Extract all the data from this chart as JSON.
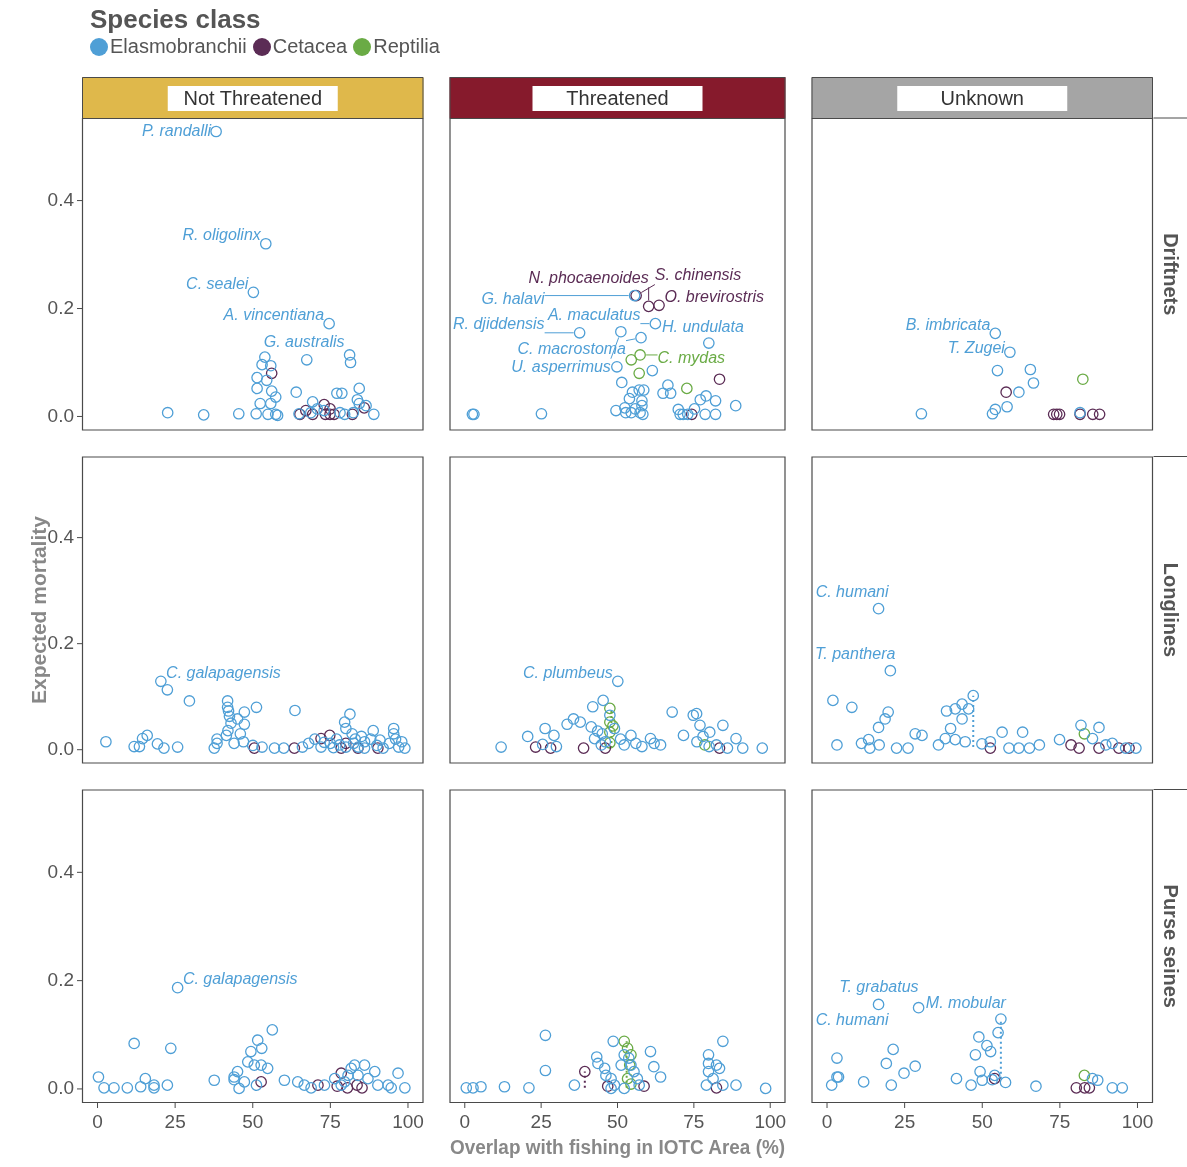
{
  "chart_data": [
    {
      "type": "scatter",
      "title": "Not Threatened",
      "marker": "circle",
      "tick_labels": "y",
      "xlim": [
        -5,
        105
      ],
      "ylim": [
        -0.026,
        0.553
      ],
      "yticks": [
        {
          "value": 0,
          "label": "0.0"
        },
        {
          "value": 0.2,
          "label": "0.2"
        },
        {
          "value": 0.4,
          "label": "0.4"
        }
      ],
      "series": [
        {
          "color": "#4f9fd6",
          "x": [
            38.2,
            54.2,
            50.2,
            74.6,
            81.2,
            81.5,
            53.9,
            53,
            55.8,
            67.4,
            51.4,
            54.5,
            51.4,
            56.1,
            57.4,
            64,
            77.1,
            78.7,
            84.3,
            83.7,
            69.3,
            52.4,
            55.8,
            22.6,
            34.2,
            45.5,
            51.1,
            54.9,
            57.4,
            58,
            64.9,
            70.8,
            78.1,
            79.6,
            82.4,
            84.3,
            86.5,
            89,
            68.7,
            73
          ],
          "values": [
            0.528,
            0.32,
            0.23,
            0.172,
            0.114,
            0.1,
            0.11,
            0.096,
            0.094,
            0.105,
            0.072,
            0.067,
            0.052,
            0.047,
            0.036,
            0.045,
            0.043,
            0.043,
            0.052,
            0.031,
            0.027,
            0.024,
            0.024,
            0.007,
            0.003,
            0.005,
            0.005,
            0.004,
            0.004,
            0.002,
            0.005,
            0.014,
            0.007,
            0.004,
            0.007,
            0.024,
            0.02,
            0.004,
            0.007,
            0.011
          ]
        },
        {
          "color": "#5b2c55",
          "x": [
            56.1,
            65.2,
            67.1,
            69.3,
            73,
            73.4,
            74.9,
            76.2,
            74.9,
            82.1,
            85.9
          ],
          "values": [
            0.08,
            0.004,
            0.011,
            0.004,
            0.022,
            0.004,
            0.004,
            0.004,
            0.014,
            0.004,
            0.016
          ]
        }
      ],
      "annotations": [
        {
          "text": "P. randalli",
          "x": 38.2,
          "y": 0.528
        },
        {
          "text": "R. oligolinx",
          "x": 54.2,
          "y": 0.32
        },
        {
          "text": "C. sealei",
          "x": 50.2,
          "y": 0.23
        },
        {
          "text": "A. vincentiana",
          "x": 74.6,
          "y": 0.172
        },
        {
          "text": "G. australis",
          "x": 81.2,
          "y": 0.114
        }
      ]
    },
    {
      "type": "scatter",
      "title": "Threatened",
      "legend_title": "Species class",
      "legend": "top left",
      "marker": "circle",
      "tick_labels": false,
      "xlim": [
        -5,
        105
      ],
      "ylim": [
        -0.026,
        0.553
      ],
      "series": [
        {
          "name": "Elasmobranchii",
          "color": "#4f9fd6",
          "x": [
            55.6,
            62.4,
            57.7,
            51.1,
            37.6,
            79.9,
            2.5,
            3,
            25.1,
            49.8,
            61.4,
            51.4,
            66.5,
            54.9,
            57.1,
            58.6,
            64.9,
            67.4,
            53.9,
            58,
            49.5,
            52.4,
            52.7,
            54.5,
            55.8,
            58,
            57.4,
            58.3,
            69.9,
            70.5,
            71.5,
            73,
            75.2,
            77.1,
            79,
            82.1,
            78.7,
            82.1,
            88.7
          ],
          "values": [
            0.224,
            0.172,
            0.146,
            0.157,
            0.155,
            0.136,
            0.004,
            0.004,
            0.005,
            0.092,
            0.085,
            0.063,
            0.058,
            0.045,
            0.049,
            0.049,
            0.043,
            0.043,
            0.033,
            0.029,
            0.011,
            0.016,
            0.007,
            0.007,
            0.014,
            0.02,
            0.007,
            0.004,
            0.013,
            0.004,
            0.004,
            0.004,
            0.014,
            0.031,
            0.038,
            0.029,
            0.004,
            0.004,
            0.02
          ]
        },
        {
          "name": "Cetacea",
          "color": "#5b2c55",
          "x": [
            56.1,
            60.2,
            63.6,
            83.4,
            74.3
          ],
          "values": [
            0.224,
            0.204,
            0.206,
            0.069,
            0.004
          ]
        },
        {
          "name": "Reptilia",
          "color": "#6aab45",
          "x": [
            54.5,
            57.4,
            57.1,
            72.7
          ],
          "values": [
            0.105,
            0.114,
            0.08,
            0.052
          ]
        }
      ],
      "annotations": [
        {
          "text": "S. chinensis",
          "x": 56.1,
          "y": 0.224
        },
        {
          "text": "G. halavi",
          "x": 55.6,
          "y": 0.224
        },
        {
          "text": "N. phocaenoides",
          "x": 60.2,
          "y": 0.204
        },
        {
          "text": "O. brevirostris",
          "x": 63.6,
          "y": 0.206
        },
        {
          "text": "A. maculatus",
          "x": 62.4,
          "y": 0.172
        },
        {
          "text": "C. macrostoma",
          "x": 57.7,
          "y": 0.146
        },
        {
          "text": "U. asperrimus",
          "x": 51.1,
          "y": 0.157
        },
        {
          "text": "R. djiddensis",
          "x": 37.6,
          "y": 0.155
        },
        {
          "text": "H. undulata",
          "x": 79.9,
          "y": 0.136
        },
        {
          "text": "C. mydas",
          "x": 57.4,
          "y": 0.114
        }
      ]
    },
    {
      "type": "scatter",
      "title": "Unknown",
      "y2label": "Driftnets",
      "marker": "circle",
      "tick_labels": false,
      "xlim": [
        -5,
        105
      ],
      "ylim": [
        -0.026,
        0.553
      ],
      "series": [
        {
          "color": "#4f9fd6",
          "x": [
            54.2,
            58.9,
            54.9,
            65.5,
            66.5,
            61.8,
            58,
            54.2,
            53.3,
            30.4,
            81.5
          ],
          "values": [
            0.154,
            0.119,
            0.085,
            0.087,
            0.062,
            0.045,
            0.018,
            0.013,
            0.005,
            0.005,
            0.007
          ]
        },
        {
          "color": "#5b2c55",
          "x": [
            57.7,
            73,
            74,
            74.9,
            81.5,
            85.6,
            87.8
          ],
          "values": [
            0.045,
            0.004,
            0.004,
            0.004,
            0.004,
            0.004,
            0.004
          ]
        },
        {
          "color": "#6aab45",
          "x": [
            82.4
          ],
          "values": [
            0.069
          ]
        }
      ],
      "annotations": [
        {
          "text": "B. imbricata",
          "x": 54.2,
          "y": 0.154
        },
        {
          "text": "T. Zugei",
          "x": 58.9,
          "y": 0.119
        }
      ]
    },
    {
      "type": "scatter",
      "ylabel": "Expected mortality",
      "marker": "circle",
      "tick_labels": "y",
      "xlim": [
        -5,
        105
      ],
      "ylim": [
        -0.026,
        0.553
      ],
      "yticks": [
        {
          "value": 0,
          "label": "0.0"
        },
        {
          "value": 0.2,
          "label": "0.2"
        },
        {
          "value": 0.4,
          "label": "0.4"
        }
      ],
      "series": [
        {
          "color": "#4f9fd6",
          "x": [
            2.7,
            11.8,
            14.5,
            16,
            13.5,
            19.3,
            21.4,
            25.8,
            20.4,
            22.5,
            29.6,
            37.6,
            38.5,
            38.5,
            41.9,
            41.9,
            42.2,
            42.5,
            43,
            42,
            41.5,
            45.1,
            47.3,
            47.3,
            51.2,
            46,
            44,
            47,
            50,
            53,
            57,
            60,
            63.6,
            66,
            68,
            70,
            72,
            75,
            76,
            78,
            79.6,
            81.3,
            80,
            82,
            83,
            82.5,
            84,
            85,
            86,
            88.8,
            88,
            90,
            91,
            92,
            94,
            95.4,
            95.4,
            96,
            97,
            98,
            99,
            86,
            80,
            77,
            73
          ],
          "values": [
            0.015,
            0.006,
            0.021,
            0.027,
            0.006,
            0.011,
            0.003,
            0.005,
            0.129,
            0.113,
            0.092,
            0.003,
            0.012,
            0.02,
            0.092,
            0.08,
            0.073,
            0.063,
            0.05,
            0.036,
            0.027,
            0.058,
            0.071,
            0.048,
            0.08,
            0.03,
            0.012,
            0.015,
            0.008,
            0.005,
            0.003,
            0.003,
            0.074,
            0.005,
            0.012,
            0.02,
            0.005,
            0.012,
            0.004,
            0.009,
            0.052,
            0.067,
            0.04,
            0.03,
            0.02,
            0.012,
            0.005,
            0.025,
            0.015,
            0.036,
            0.02,
            0.008,
            0.018,
            0.003,
            0.012,
            0.04,
            0.03,
            0.02,
            0.005,
            0.015,
            0.003,
            0.003,
            0.005,
            0.02,
            0.014
          ]
        },
        {
          "color": "#5b2c55",
          "x": [
            50.5,
            63.4,
            72,
            74.8,
            78.5,
            83.9,
            90.3,
            80
          ],
          "values": [
            0.003,
            0.003,
            0.021,
            0.027,
            0.003,
            0.003,
            0.003,
            0.012
          ]
        }
      ],
      "annotations": [
        {
          "text": "C. galapagensis",
          "x": 20.4,
          "y": 0.129
        }
      ]
    },
    {
      "type": "scatter",
      "marker": "circle",
      "tick_labels": false,
      "xlim": [
        -5,
        105
      ],
      "ylim": [
        -0.026,
        0.553
      ],
      "series": [
        {
          "color": "#4f9fd6",
          "x": [
            11.9,
            20.6,
            26.3,
            29.2,
            33.5,
            35.6,
            37.8,
            41.9,
            45.3,
            47.5,
            41.4,
            42.5,
            44.7,
            50.1,
            52.2,
            54.4,
            60.8,
            64.1,
            67.9,
            71.6,
            74.8,
            75.9,
            77,
            80.2,
            84.5,
            88.8,
            91,
            97.4,
            82.4,
            45,
            46,
            43.5,
            49,
            51,
            56,
            58,
            62,
            76,
            78,
            80,
            86,
            30,
            25.5
          ],
          "values": [
            0.005,
            0.025,
            0.04,
            0.027,
            0.048,
            0.058,
            0.052,
            0.081,
            0.093,
            0.065,
            0.043,
            0.021,
            0.009,
            0.129,
            0.009,
            0.027,
            0.021,
            0.009,
            0.071,
            0.027,
            0.065,
            0.068,
            0.046,
            0.033,
            0.046,
            0.021,
            0.003,
            0.003,
            0.009,
            0.03,
            0.015,
            0.035,
            0.04,
            0.02,
            0.012,
            0.006,
            0.012,
            0.015,
            0.025,
            0.006,
            0.003,
            0.006,
            0.01
          ]
        },
        {
          "color": "#5b2c55",
          "x": [
            23.2,
            28.1,
            38.9,
            83.4,
            46
          ],
          "values": [
            0.005,
            0.003,
            0.003,
            0.003,
            0.003
          ]
        },
        {
          "color": "#6aab45",
          "x": [
            47.5,
            47.5,
            47.5,
            47.5,
            78.6,
            48.5
          ],
          "values": [
            0.078,
            0.052,
            0.033,
            0.013,
            0.009,
            0.045
          ]
        },
        {
          "type": "line",
          "color": "#6aab45",
          "line_style": "dotted",
          "marker": "none",
          "x": [
            48,
            48
          ],
          "values": [
            0.003,
            0.078
          ]
        }
      ],
      "annotations": [
        {
          "text": "C. plumbeus",
          "x": 50.1,
          "y": 0.129
        }
      ]
    },
    {
      "type": "scatter",
      "y2label": "Longlines",
      "marker": "circle",
      "tick_labels": false,
      "xlim": [
        -5,
        105
      ],
      "ylim": [
        -0.026,
        0.553
      ],
      "series": [
        {
          "color": "#4f9fd6",
          "x": [
            16.6,
            20.4,
            1.9,
            8,
            19.7,
            18.7,
            16.6,
            13.4,
            3.2,
            11.1,
            13.8,
            16.8,
            22.4,
            26.1,
            28.4,
            30.6,
            35.9,
            38.5,
            41.3,
            43.5,
            45.6,
            43.5,
            39.8,
            38.1,
            41.3,
            44.5,
            47.1,
            49.9,
            52.6,
            56.4,
            58.6,
            61.8,
            63,
            65.2,
            68.4,
            74.9,
            81.8,
            87.6,
            85.5,
            89.8,
            91.9,
            96.2,
            99.5
          ],
          "values": [
            0.266,
            0.149,
            0.093,
            0.08,
            0.071,
            0.058,
            0.042,
            0.019,
            0.009,
            0.012,
            0.003,
            0.009,
            0.003,
            0.003,
            0.03,
            0.027,
            0.009,
            0.073,
            0.077,
            0.086,
            0.077,
            0.058,
            0.04,
            0.021,
            0.019,
            0.015,
            0.102,
            0.011,
            0.015,
            0.033,
            0.003,
            0.003,
            0.033,
            0.003,
            0.009,
            0.019,
            0.046,
            0.042,
            0.021,
            0.009,
            0.012,
            0.003,
            0.003
          ]
        },
        {
          "color": "#5b2c55",
          "x": [
            52.6,
            78.6,
            81.2,
            87.6,
            94,
            97.3
          ],
          "values": [
            0.003,
            0.009,
            0.003,
            0.003,
            0.003,
            0.003
          ]
        },
        {
          "color": "#6aab45",
          "x": [
            82.9
          ],
          "values": [
            0.03
          ]
        },
        {
          "type": "line",
          "color": "#4f9fd6",
          "line_style": "dotted",
          "marker": "none",
          "x": [
            47.1,
            47.1
          ],
          "values": [
            0.005,
            0.102
          ]
        }
      ],
      "annotations": [
        {
          "text": "C. humani",
          "x": 16.6,
          "y": 0.266
        },
        {
          "text": "T. panthera",
          "x": 20.4,
          "y": 0.149
        }
      ]
    },
    {
      "type": "scatter",
      "marker": "circle",
      "xlim": [
        -5,
        105
      ],
      "ylim": [
        -0.026,
        0.553
      ],
      "xticks": [
        0,
        25,
        50,
        75,
        100
      ],
      "yticks": [
        {
          "value": 0,
          "label": "0.0"
        },
        {
          "value": 0.2,
          "label": "0.2"
        },
        {
          "value": 0.4,
          "label": "0.4"
        }
      ],
      "series": [
        {
          "color": "#4f9fd6",
          "x": [
            25.8,
            11.8,
            23.6,
            0.3,
            2.1,
            5.3,
            9.6,
            13.9,
            15.4,
            18.2,
            18.2,
            22.5,
            37.6,
            49.4,
            51.6,
            52.9,
            56.3,
            48.4,
            50.5,
            52.7,
            54.8,
            45.1,
            44,
            47.3,
            51.2,
            60.2,
            45.6,
            44,
            64.5,
            66.6,
            68.8,
            73.1,
            78.5,
            80.7,
            81.7,
            82.8,
            83.9,
            86,
            87.1,
            89.3,
            90.3,
            93.6,
            96.8,
            99,
            94.6,
            76.4,
            79.6
          ],
          "values": [
            0.187,
            0.084,
            0.075,
            0.022,
            0.002,
            0.002,
            0.002,
            0.004,
            0.019,
            0.007,
            0.002,
            0.007,
            0.016,
            0.069,
            0.09,
            0.075,
            0.109,
            0.05,
            0.044,
            0.044,
            0.038,
            0.032,
            0.017,
            0.013,
            0.007,
            0.016,
            0.001,
            0.022,
            0.013,
            0.007,
            0.002,
            0.007,
            0.007,
            0.025,
            0.038,
            0.044,
            0.025,
            0.044,
            0.019,
            0.032,
            0.007,
            0.007,
            0.029,
            0.002,
            0.002,
            0.019,
            0.013
          ]
        },
        {
          "color": "#5b2c55",
          "x": [
            52.7,
            78.5,
            71,
            77.2,
            83.6,
            80.5,
            85.2
          ],
          "values": [
            0.013,
            0.029,
            0.007,
            0.005,
            0.007,
            0.002,
            0.002
          ]
        }
      ],
      "annotations": [
        {
          "text": "C. galapagensis",
          "x": 25.8,
          "y": 0.187
        }
      ]
    },
    {
      "type": "scatter",
      "xlabel": "Overlap with fishing in IOTC Area (%)",
      "marker": "circle",
      "tick_labels": "x",
      "xlim": [
        -5,
        105
      ],
      "ylim": [
        -0.026,
        0.553
      ],
      "xticks": [
        0,
        25,
        50,
        75,
        100
      ],
      "series": [
        {
          "color": "#4f9fd6",
          "x": [
            0.5,
            2.7,
            5.3,
            13,
            21,
            26.4,
            26.4,
            35.9,
            43.2,
            43.6,
            45.8,
            46.2,
            47.9,
            49,
            48.6,
            51.2,
            52.2,
            53.7,
            54.4,
            55.4,
            56.5,
            60.8,
            61.9,
            64.1,
            47.9,
            52.2,
            57.1,
            84.5,
            79.8,
            79.8,
            82.4,
            83.4,
            79.8,
            81.3,
            79.1,
            84.5,
            88.8,
            98.5
          ],
          "values": [
            0.002,
            0.002,
            0.004,
            0.004,
            0.002,
            0.099,
            0.034,
            0.007,
            0.059,
            0.047,
            0.038,
            0.025,
            0.019,
            0.007,
            0.088,
            0.044,
            0.063,
            0.057,
            0.044,
            0.032,
            0.019,
            0.069,
            0.041,
            0.022,
            0.001,
            0.001,
            0.007,
            0.088,
            0.063,
            0.047,
            0.044,
            0.038,
            0.032,
            0.019,
            0.007,
            0.007,
            0.007,
            0.001
          ]
        },
        {
          "color": "#5b2c55",
          "x": [
            39.3,
            46.8,
            58.7,
            82.4
          ],
          "values": [
            0.032,
            0.005,
            0.005,
            0.002
          ]
        },
        {
          "color": "#6aab45",
          "x": [
            52.2,
            53.3,
            54.4,
            54,
            53.3,
            54.4
          ],
          "values": [
            0.088,
            0.075,
            0.063,
            0.044,
            0.019,
            0.009
          ]
        },
        {
          "type": "line",
          "color": "#6aab45",
          "line_style": "dotted",
          "marker": "none",
          "x": [
            53,
            53
          ],
          "values": [
            0.002,
            0.088
          ]
        },
        {
          "type": "line",
          "color": "#5b2c55",
          "line_style": "dotted",
          "marker": "none",
          "x": [
            39.3,
            39.3
          ],
          "values": [
            0.002,
            0.032
          ]
        }
      ]
    },
    {
      "type": "scatter",
      "y2label": "Purse seines",
      "marker": "circle",
      "tick_labels": "x",
      "xlim": [
        -5,
        105
      ],
      "ylim": [
        -0.026,
        0.553
      ],
      "xticks": [
        0,
        25,
        50,
        75,
        100
      ],
      "series": [
        {
          "color": "#4f9fd6",
          "x": [
            16.6,
            29.5,
            56,
            55.1,
            54,
            3.2,
            1.5,
            3.2,
            3.7,
            11.8,
            19.1,
            21.3,
            20.7,
            24.8,
            28.4,
            41.7,
            46.4,
            47.8,
            48.9,
            51.5,
            52.7,
            49.3,
            50,
            53.2,
            57.5,
            67.3,
            85.5,
            87.2,
            91.9,
            95.1
          ],
          "values": [
            0.156,
            0.15,
            0.129,
            0.104,
            0.025,
            0.057,
            0.007,
            0.022,
            0.022,
            0.013,
            0.047,
            0.073,
            0.007,
            0.029,
            0.042,
            0.019,
            0.007,
            0.063,
            0.096,
            0.08,
            0.069,
            0.032,
            0.016,
            0.017,
            0.012,
            0.005,
            0.019,
            0.016,
            0.002,
            0.002
          ]
        },
        {
          "color": "#5b2c55",
          "x": [
            54,
            80.3,
            83,
            84.5
          ],
          "values": [
            0.019,
            0.002,
            0.002,
            0.002
          ]
        },
        {
          "color": "#6aab45",
          "x": [
            82.9
          ],
          "values": [
            0.025
          ]
        },
        {
          "type": "line",
          "color": "#4f9fd6",
          "line_style": "dotted",
          "marker": "none",
          "x": [
            56,
            56
          ],
          "values": [
            0.019,
            0.129
          ]
        }
      ],
      "annotations": [
        {
          "text": "C. humani",
          "x": 16.6,
          "y": 0.156
        },
        {
          "text": "T. grabatus",
          "x": 29.5,
          "y": 0.15
        },
        {
          "text": "M. mobular",
          "x": 56,
          "y": 0.129
        }
      ]
    }
  ]
}
